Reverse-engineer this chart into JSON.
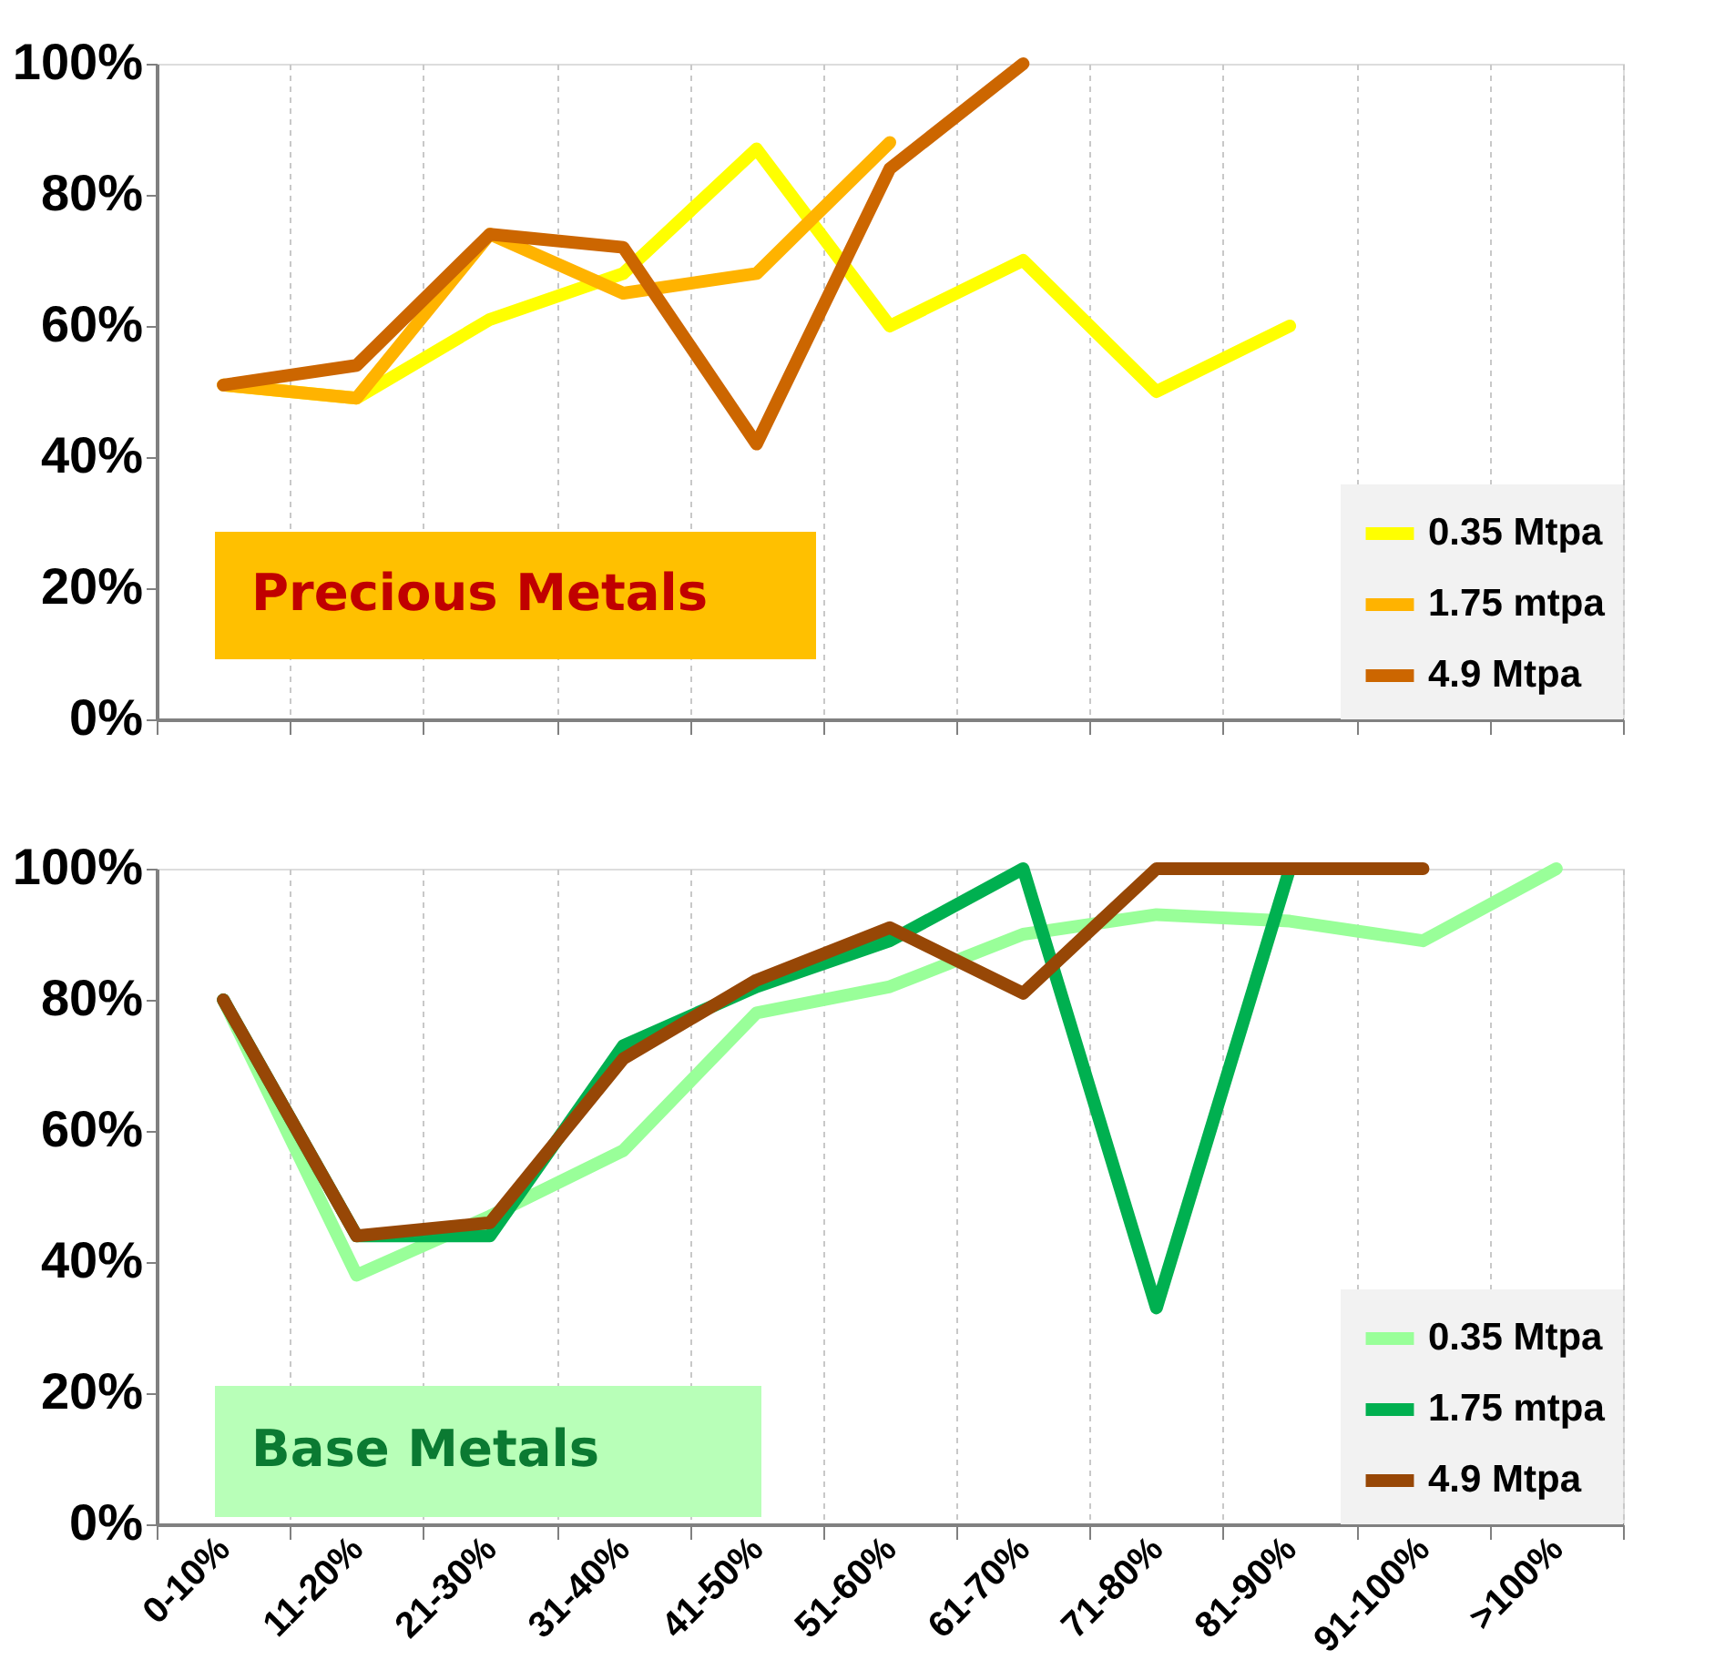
{
  "chart_data": [
    {
      "type": "line",
      "title": "Precious Metals",
      "categories": [
        null,
        null,
        null,
        null,
        null,
        null,
        null,
        null,
        null,
        null,
        null
      ],
      "series": [
        {
          "name": "0.35 Mtpa",
          "color": "#ffff00",
          "values": [
            51,
            49,
            61,
            68,
            87,
            60,
            70,
            50,
            60,
            null,
            null
          ]
        },
        {
          "name": "1.75 mtpa",
          "color": "#ffb300",
          "values": [
            51,
            49,
            74,
            65,
            68,
            88,
            null,
            null,
            null,
            null,
            null
          ]
        },
        {
          "name": "4.9 Mtpa",
          "color": "#cc6600",
          "values": [
            51,
            54,
            74,
            72,
            42,
            84,
            100,
            null,
            null,
            null,
            null
          ]
        }
      ],
      "ylim": [
        0,
        100
      ],
      "yticks": [
        {
          "value": 0,
          "label": "0%"
        },
        {
          "value": 20,
          "label": "20%"
        },
        {
          "value": 40,
          "label": "40%"
        },
        {
          "value": 60,
          "label": "60%"
        },
        {
          "value": 80,
          "label": "80%"
        },
        {
          "value": 100,
          "label": "100%"
        }
      ],
      "grid": "x",
      "legend": "bottom right",
      "tick_labels": "y",
      "marker": "none",
      "line_style": "solid"
    },
    {
      "type": "line",
      "title": "Base Metals",
      "categories": [
        "0-10%",
        "11-20%",
        "21-30%",
        "31-40%",
        "41-50%",
        "51-60%",
        "61-70%",
        "71-80%",
        "81-90%",
        "91-100%",
        ">100%"
      ],
      "series": [
        {
          "name": "0.35 Mtpa",
          "color": "#99ff99",
          "values": [
            80,
            38,
            47,
            57,
            78,
            82,
            90,
            93,
            92,
            89,
            100
          ]
        },
        {
          "name": "1.75 mtpa",
          "color": "#00b050",
          "values": [
            80,
            44,
            44,
            73,
            82,
            89,
            100,
            33,
            100,
            null,
            null
          ]
        },
        {
          "name": "4.9 Mtpa",
          "color": "#974706",
          "values": [
            80,
            44,
            46,
            71,
            83,
            91,
            81,
            100,
            100,
            100,
            null
          ]
        }
      ],
      "ylim": [
        0,
        100
      ],
      "yticks": [
        {
          "value": 0,
          "label": "0%"
        },
        {
          "value": 20,
          "label": "20%"
        },
        {
          "value": 40,
          "label": "40%"
        },
        {
          "value": 60,
          "label": "60%"
        },
        {
          "value": 80,
          "label": "80%"
        },
        {
          "value": 100,
          "label": "100%"
        }
      ],
      "grid": "x",
      "legend": "bottom right",
      "marker": "none",
      "line_style": "solid"
    }
  ]
}
